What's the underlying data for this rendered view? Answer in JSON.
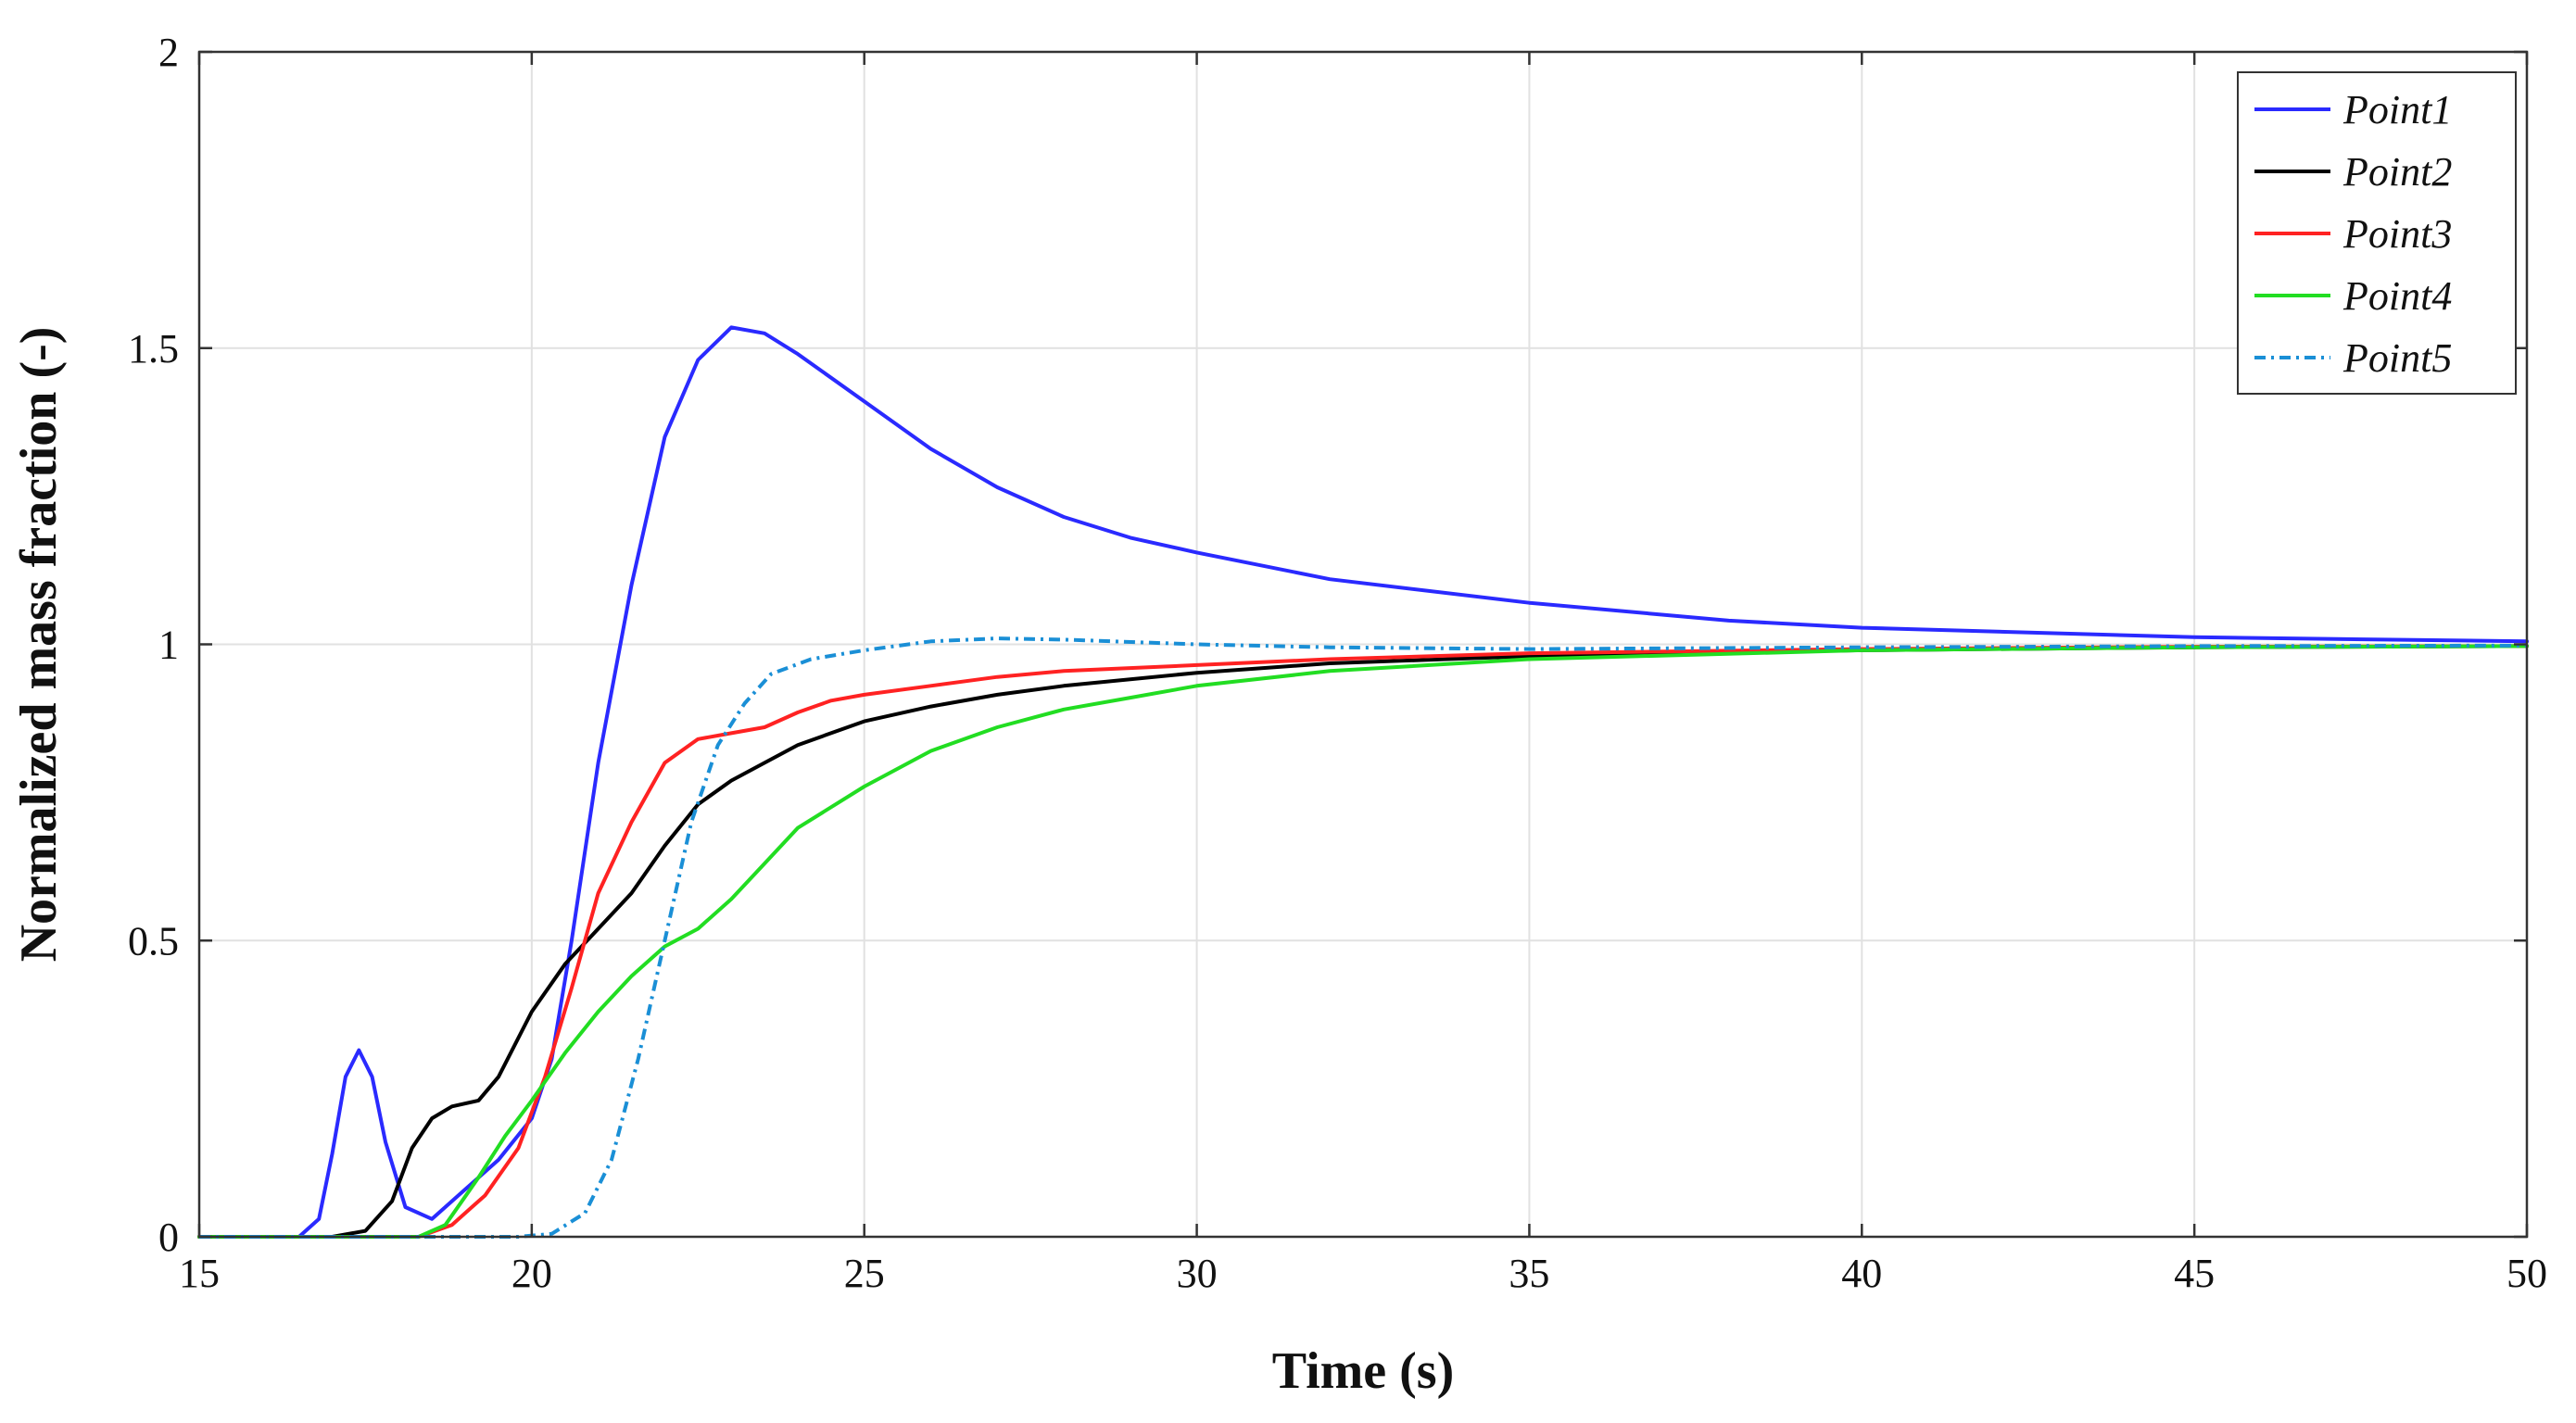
{
  "chart_data": {
    "type": "line",
    "title": "",
    "xlabel": "Time (s)",
    "ylabel": "Normalized mass fraction (-)",
    "xlim": [
      15,
      50
    ],
    "ylim": [
      0,
      2
    ],
    "xticks": [
      15,
      20,
      25,
      30,
      35,
      40,
      45,
      50
    ],
    "yticks": [
      0,
      0.5,
      1,
      1.5,
      2
    ],
    "xtick_labels": [
      "15",
      "20",
      "25",
      "30",
      "35",
      "40",
      "45",
      "50"
    ],
    "ytick_labels": [
      "0",
      "0.5",
      "1",
      "1.5",
      "2"
    ],
    "grid": true,
    "legend_position": "top-right",
    "series": [
      {
        "name": "Point1",
        "color": "#2a2aff",
        "style": "solid",
        "points": [
          [
            15,
            0
          ],
          [
            16.5,
            0
          ],
          [
            16.8,
            0.03
          ],
          [
            17.0,
            0.14
          ],
          [
            17.2,
            0.27
          ],
          [
            17.4,
            0.315
          ],
          [
            17.6,
            0.27
          ],
          [
            17.8,
            0.16
          ],
          [
            18.1,
            0.05
          ],
          [
            18.5,
            0.03
          ],
          [
            19.0,
            0.08
          ],
          [
            19.5,
            0.13
          ],
          [
            20.0,
            0.2
          ],
          [
            20.3,
            0.3
          ],
          [
            20.6,
            0.5
          ],
          [
            21.0,
            0.8
          ],
          [
            21.5,
            1.1
          ],
          [
            22.0,
            1.35
          ],
          [
            22.5,
            1.48
          ],
          [
            23.0,
            1.535
          ],
          [
            23.5,
            1.525
          ],
          [
            24.0,
            1.49
          ],
          [
            25.0,
            1.41
          ],
          [
            26.0,
            1.33
          ],
          [
            27.0,
            1.265
          ],
          [
            28.0,
            1.215
          ],
          [
            29.0,
            1.18
          ],
          [
            30.0,
            1.155
          ],
          [
            32.0,
            1.11
          ],
          [
            35.0,
            1.07
          ],
          [
            38.0,
            1.04
          ],
          [
            40.0,
            1.028
          ],
          [
            45.0,
            1.012
          ],
          [
            50.0,
            1.005
          ]
        ]
      },
      {
        "name": "Point2",
        "color": "#000000",
        "style": "solid",
        "points": [
          [
            15,
            0
          ],
          [
            17.0,
            0
          ],
          [
            17.5,
            0.01
          ],
          [
            17.9,
            0.06
          ],
          [
            18.2,
            0.15
          ],
          [
            18.5,
            0.2
          ],
          [
            18.8,
            0.22
          ],
          [
            19.2,
            0.23
          ],
          [
            19.5,
            0.27
          ],
          [
            20.0,
            0.38
          ],
          [
            20.5,
            0.46
          ],
          [
            21.0,
            0.52
          ],
          [
            21.5,
            0.58
          ],
          [
            22.0,
            0.66
          ],
          [
            22.5,
            0.73
          ],
          [
            23.0,
            0.77
          ],
          [
            23.5,
            0.8
          ],
          [
            24.0,
            0.83
          ],
          [
            25.0,
            0.87
          ],
          [
            26.0,
            0.895
          ],
          [
            27.0,
            0.915
          ],
          [
            28.0,
            0.93
          ],
          [
            30.0,
            0.952
          ],
          [
            32.0,
            0.968
          ],
          [
            35.0,
            0.98
          ],
          [
            40.0,
            0.99
          ],
          [
            45.0,
            0.995
          ],
          [
            50.0,
            0.997
          ]
        ]
      },
      {
        "name": "Point3",
        "color": "#ff2222",
        "style": "solid",
        "points": [
          [
            15,
            0
          ],
          [
            18.3,
            0
          ],
          [
            18.8,
            0.02
          ],
          [
            19.3,
            0.07
          ],
          [
            19.8,
            0.15
          ],
          [
            20.2,
            0.27
          ],
          [
            20.6,
            0.42
          ],
          [
            21.0,
            0.58
          ],
          [
            21.5,
            0.7
          ],
          [
            22.0,
            0.8
          ],
          [
            22.5,
            0.84
          ],
          [
            23.0,
            0.85
          ],
          [
            23.5,
            0.86
          ],
          [
            24.0,
            0.885
          ],
          [
            24.5,
            0.905
          ],
          [
            25.0,
            0.915
          ],
          [
            26.0,
            0.93
          ],
          [
            27.0,
            0.945
          ],
          [
            28.0,
            0.955
          ],
          [
            30.0,
            0.965
          ],
          [
            32.0,
            0.975
          ],
          [
            35.0,
            0.985
          ],
          [
            40.0,
            0.992
          ],
          [
            45.0,
            0.996
          ],
          [
            50.0,
            0.997
          ]
        ]
      },
      {
        "name": "Point4",
        "color": "#22dd22",
        "style": "solid",
        "points": [
          [
            15,
            0
          ],
          [
            18.3,
            0
          ],
          [
            18.7,
            0.02
          ],
          [
            19.2,
            0.1
          ],
          [
            19.6,
            0.17
          ],
          [
            20.0,
            0.23
          ],
          [
            20.5,
            0.31
          ],
          [
            21.0,
            0.38
          ],
          [
            21.5,
            0.44
          ],
          [
            22.0,
            0.49
          ],
          [
            22.5,
            0.52
          ],
          [
            23.0,
            0.57
          ],
          [
            23.5,
            0.63
          ],
          [
            24.0,
            0.69
          ],
          [
            25.0,
            0.76
          ],
          [
            26.0,
            0.82
          ],
          [
            27.0,
            0.86
          ],
          [
            28.0,
            0.89
          ],
          [
            29.0,
            0.91
          ],
          [
            30.0,
            0.93
          ],
          [
            32.0,
            0.955
          ],
          [
            35.0,
            0.975
          ],
          [
            40.0,
            0.99
          ],
          [
            45.0,
            0.995
          ],
          [
            50.0,
            0.997
          ]
        ]
      },
      {
        "name": "Point5",
        "color": "#1a8fd6",
        "style": "dashdot",
        "points": [
          [
            15,
            0
          ],
          [
            19.8,
            0
          ],
          [
            20.3,
            0.005
          ],
          [
            20.8,
            0.04
          ],
          [
            21.2,
            0.13
          ],
          [
            21.6,
            0.3
          ],
          [
            22.0,
            0.5
          ],
          [
            22.4,
            0.7
          ],
          [
            22.8,
            0.83
          ],
          [
            23.2,
            0.9
          ],
          [
            23.6,
            0.95
          ],
          [
            24.2,
            0.975
          ],
          [
            25.0,
            0.99
          ],
          [
            26.0,
            1.005
          ],
          [
            27.0,
            1.01
          ],
          [
            28.0,
            1.008
          ],
          [
            30.0,
            1.0
          ],
          [
            32.0,
            0.995
          ],
          [
            35.0,
            0.992
          ],
          [
            40.0,
            0.995
          ],
          [
            45.0,
            0.997
          ],
          [
            50.0,
            0.998
          ]
        ]
      }
    ]
  }
}
